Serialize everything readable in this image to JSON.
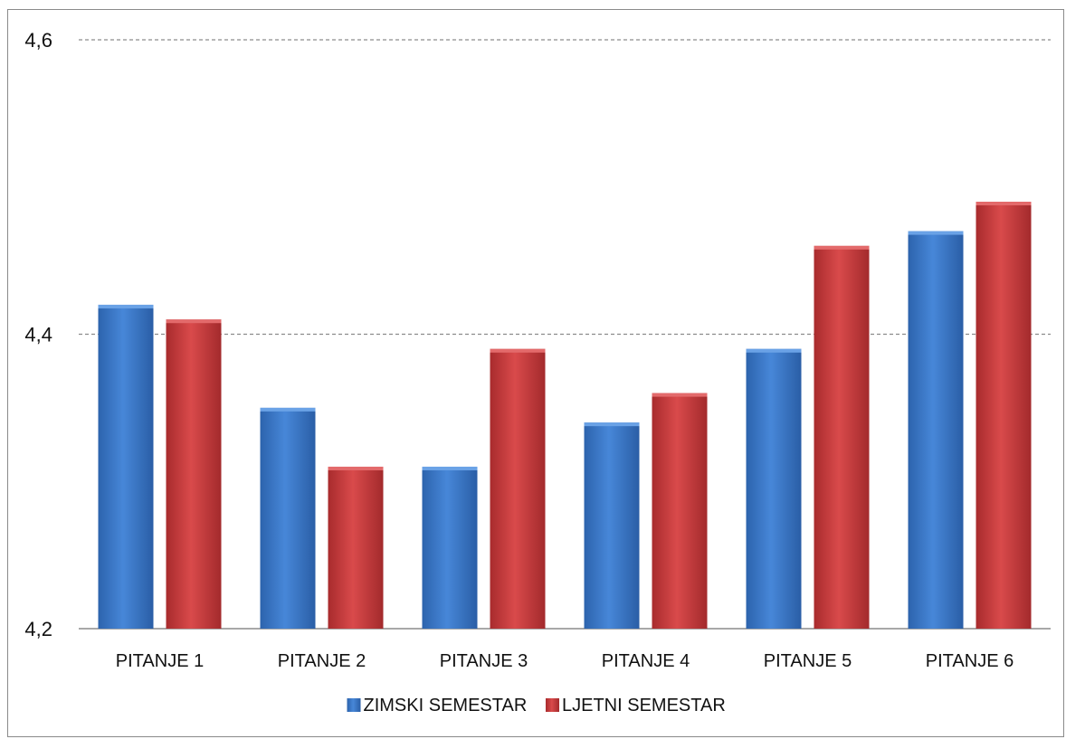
{
  "chart_data": {
    "type": "bar",
    "title": "",
    "xlabel": "",
    "ylabel": "",
    "categories": [
      "PITANJE 1",
      "PITANJE 2",
      "PITANJE 3",
      "PITANJE 4",
      "PITANJE 5",
      "PITANJE 6"
    ],
    "series": [
      {
        "name": "ZIMSKI SEMESTAR",
        "color": "#3a75c4",
        "values": [
          4.42,
          4.35,
          4.31,
          4.34,
          4.39,
          4.47
        ]
      },
      {
        "name": "LJETNI SEMESTAR",
        "color": "#c0393b",
        "values": [
          4.41,
          4.31,
          4.39,
          4.36,
          4.46,
          4.49
        ]
      }
    ],
    "ylim": [
      4.2,
      4.6
    ],
    "yticks": [
      4.2,
      4.4,
      4.6
    ],
    "ytick_labels": [
      "4,2",
      "4,4",
      "4,6"
    ],
    "grid": "horizontal-dashed",
    "legend_position": "bottom"
  }
}
